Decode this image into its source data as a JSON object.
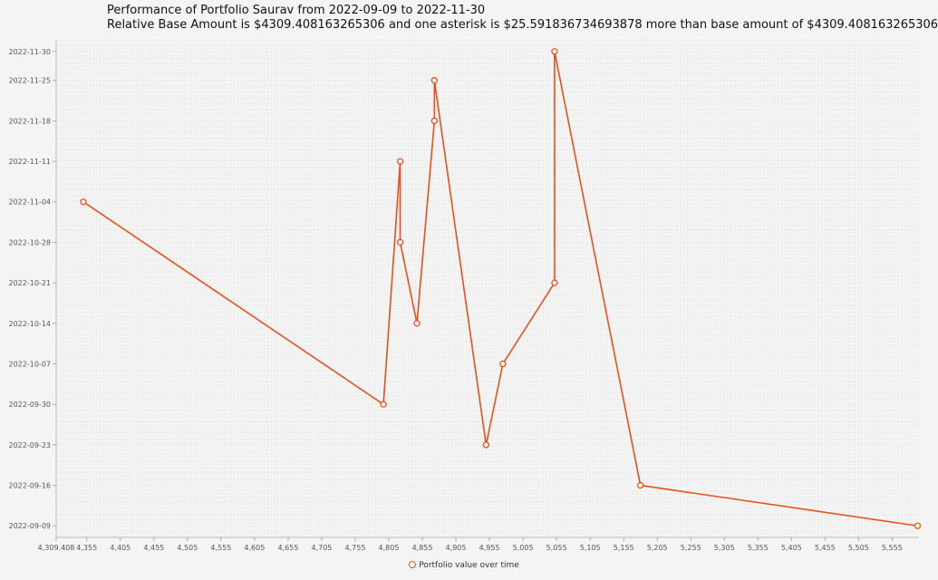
{
  "chart_data": {
    "type": "line",
    "title": "Performance of Portfolio Saurav from 2022-09-09 to 2022-11-30",
    "subtitle": "Relative Base Amount is $4309.408163265306 and one asterisk is $25.591836734693878 more than base amount of $4309.408163265306",
    "x_tick_labels": [
      "4,309.408",
      "4,355",
      "4,405",
      "4,455",
      "4,505",
      "4,555",
      "4,605",
      "4,655",
      "4,705",
      "4,755",
      "4,805",
      "4,855",
      "4,905",
      "4,955",
      "5,005",
      "5,055",
      "5,105",
      "5,155",
      "5,205",
      "5,255",
      "5,305",
      "5,355",
      "5,405",
      "5,455",
      "5,505",
      "5,555"
    ],
    "x_ticks": [
      4309.408,
      4355,
      4405,
      4455,
      4505,
      4555,
      4605,
      4655,
      4705,
      4755,
      4805,
      4855,
      4905,
      4955,
      5005,
      5055,
      5105,
      5155,
      5205,
      5255,
      5305,
      5355,
      5405,
      5455,
      5505,
      5555
    ],
    "xlim": [
      4309.408,
      5595
    ],
    "y_tick_labels": [
      "2022-09-09",
      "2022-09-16",
      "2022-09-23",
      "2022-09-30",
      "2022-10-07",
      "2022-10-14",
      "2022-10-21",
      "2022-10-28",
      "2022-11-04",
      "2022-11-11",
      "2022-11-18",
      "2022-11-25",
      "2022-11-30"
    ],
    "y_ticks": [
      "2022-09-09",
      "2022-09-16",
      "2022-09-23",
      "2022-09-30",
      "2022-10-07",
      "2022-10-14",
      "2022-10-21",
      "2022-10-28",
      "2022-11-04",
      "2022-11-11",
      "2022-11-18",
      "2022-11-25",
      "2022-11-30"
    ],
    "ylim": [
      "2022-09-07",
      "2022-12-02"
    ],
    "grid": true,
    "legend_position": "bottom-center",
    "series": [
      {
        "name": "Portfolio value over time",
        "color": "#e8501a",
        "points": [
          {
            "x": 4350,
            "y": "2022-11-04"
          },
          {
            "x": 4797,
            "y": "2022-09-30"
          },
          {
            "x": 4822,
            "y": "2022-11-11"
          },
          {
            "x": 4822,
            "y": "2022-10-28"
          },
          {
            "x": 4847,
            "y": "2022-10-14"
          },
          {
            "x": 4873,
            "y": "2022-11-18"
          },
          {
            "x": 4873,
            "y": "2022-11-25"
          },
          {
            "x": 4950,
            "y": "2022-09-23"
          },
          {
            "x": 4975,
            "y": "2022-10-07"
          },
          {
            "x": 5052,
            "y": "2022-10-21"
          },
          {
            "x": 5052,
            "y": "2022-11-30"
          },
          {
            "x": 5180,
            "y": "2022-09-16"
          },
          {
            "x": 5593,
            "y": "2022-09-09"
          }
        ]
      }
    ]
  }
}
